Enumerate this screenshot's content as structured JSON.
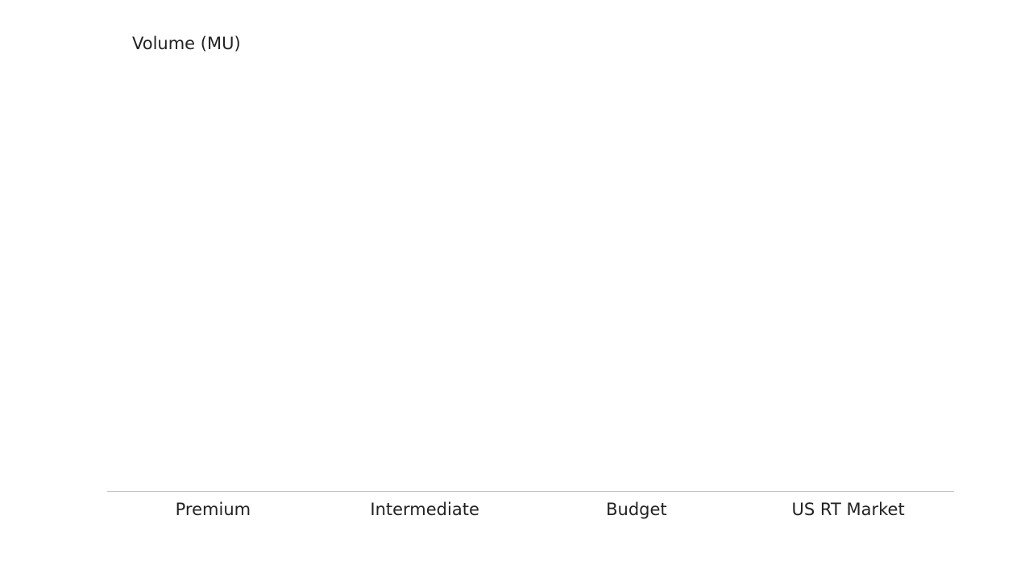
{
  "chart_data": {
    "type": "bar",
    "y_label": "Volume (MU)",
    "categories": [
      "Premium",
      "Intermediate",
      "Budget",
      "US RT Market"
    ]
  }
}
